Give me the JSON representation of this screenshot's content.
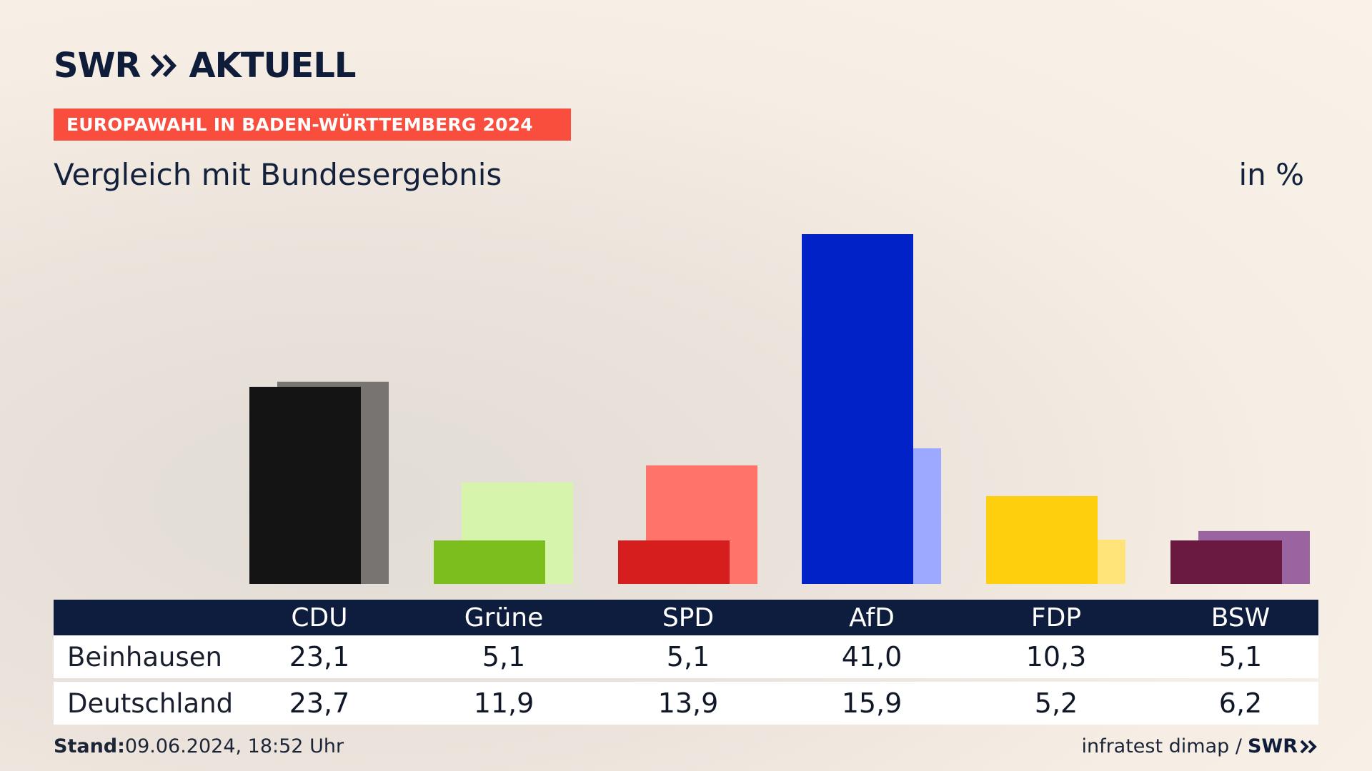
{
  "header": {
    "logo_left": "SWR",
    "logo_right": "AKTUELL",
    "badge": "EUROPAWAHL IN BADEN-WÜRTTEMBERG 2024",
    "subtitle": "Vergleich mit Bundesergebnis",
    "unit": "in %"
  },
  "chart_data": {
    "type": "bar",
    "title": "Vergleich mit Bundesergebnis",
    "unit": "in %",
    "categories": [
      "CDU",
      "Grüne",
      "SPD",
      "AfD",
      "FDP",
      "BSW"
    ],
    "series": [
      {
        "name": "Beinhausen",
        "values": [
          23.1,
          5.1,
          5.1,
          41.0,
          10.3,
          5.1
        ]
      },
      {
        "name": "Deutschland",
        "values": [
          23.7,
          11.9,
          13.9,
          15.9,
          5.2,
          6.2
        ]
      }
    ],
    "colors_primary": [
      "#141414",
      "#7bbe1e",
      "#d61e1e",
      "#0022c6",
      "#fecf0d",
      "#6a1a40"
    ],
    "colors_secondary": [
      "#777471",
      "#d6f4ac",
      "#ff736b",
      "#9da9ff",
      "#ffe47a",
      "#9a64a0"
    ],
    "ylim": [
      0,
      41
    ]
  },
  "table": {
    "headers": [
      "CDU",
      "Grüne",
      "SPD",
      "AfD",
      "FDP",
      "BSW"
    ],
    "rows": [
      {
        "label": "Beinhausen",
        "values": [
          "23,1",
          "5,1",
          "5,1",
          "41,0",
          "10,3",
          "5,1"
        ]
      },
      {
        "label": "Deutschland",
        "values": [
          "23,7",
          "11,9",
          "13,9",
          "15,9",
          "5,2",
          "6,2"
        ]
      }
    ]
  },
  "footer": {
    "stand_label": "Stand:",
    "stand_value": "09.06.2024, 18:52 Uhr",
    "source": "infratest dimap /",
    "brand": "SWR"
  }
}
